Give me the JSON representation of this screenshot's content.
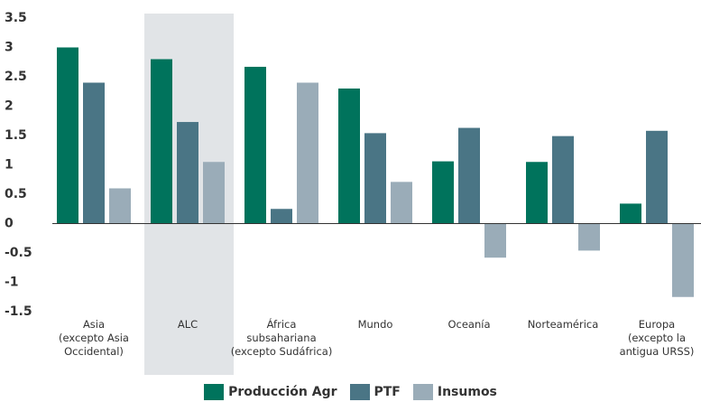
{
  "chart_data": {
    "type": "bar",
    "categories": [
      "Asia\n(excepto Asia\nOccidental)",
      "ALC",
      "África\nsubsahariana\n(excepto Sudáfrica)",
      "Mundo",
      "Oceanía",
      "Norteamérica",
      "Europa\n(excepto la\nantigua URSS)"
    ],
    "series": [
      {
        "name": "Producción Agr",
        "color": "#00735c",
        "values": [
          3.0,
          2.8,
          2.67,
          2.3,
          1.06,
          1.05,
          0.34
        ]
      },
      {
        "name": "PTF",
        "color": "#4a7585",
        "values": [
          2.4,
          1.73,
          0.25,
          1.54,
          1.63,
          1.49,
          1.58
        ]
      },
      {
        "name": "Insumos",
        "color": "#9aacb8",
        "values": [
          0.6,
          1.05,
          2.4,
          0.71,
          -0.58,
          -0.46,
          -1.25
        ]
      }
    ],
    "ylim": [
      -1.5,
      3.5
    ],
    "yticks": [
      3.5,
      3,
      2.5,
      2,
      1.5,
      1,
      0.5,
      0,
      -0.5,
      -1,
      -1.5
    ],
    "highlight": "ALC",
    "highlight_color": "#e1e4e7"
  }
}
